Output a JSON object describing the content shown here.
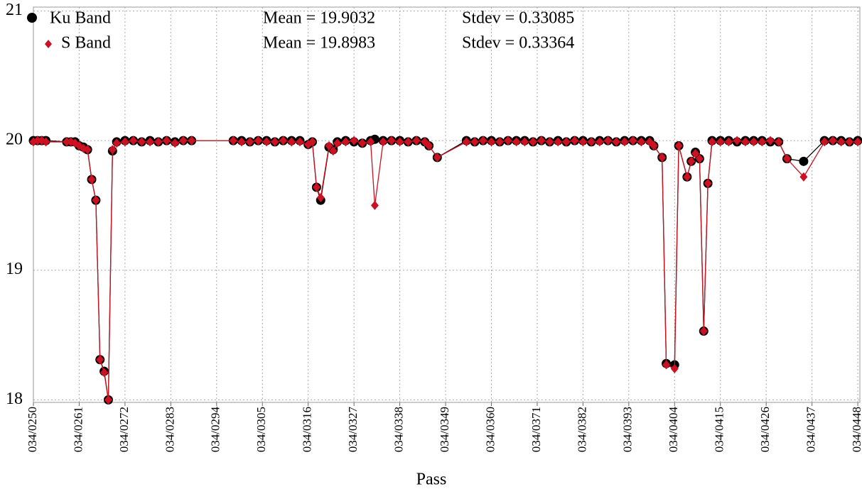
{
  "chart_data": {
    "type": "line",
    "x_label": "Pass",
    "x": [
      250,
      251,
      252,
      253,
      258,
      259,
      260,
      261,
      262,
      263,
      264,
      265,
      266,
      267,
      268,
      269,
      270,
      272,
      274,
      276,
      278,
      280,
      282,
      284,
      286,
      288,
      298,
      300,
      302,
      304,
      306,
      308,
      310,
      312,
      314,
      316,
      317,
      318,
      319,
      321,
      322,
      323,
      325,
      327,
      329,
      331,
      332,
      334,
      336,
      338,
      340,
      342,
      344,
      345,
      347,
      354,
      356,
      358,
      360,
      362,
      364,
      366,
      368,
      370,
      372,
      374,
      376,
      378,
      380,
      382,
      384,
      386,
      388,
      390,
      392,
      394,
      396,
      398,
      399,
      401,
      402,
      404,
      405,
      407,
      408,
      409,
      410,
      411,
      412,
      413,
      415,
      417,
      419,
      421,
      423,
      425,
      427,
      429,
      431,
      435,
      440,
      442,
      444,
      446,
      448
    ],
    "series": [
      {
        "name": "Ku Band",
        "color": "#000000",
        "marker": "circle",
        "values": [
          20.0,
          20.0,
          20.0,
          20.0,
          19.99,
          19.99,
          19.99,
          19.96,
          19.95,
          19.93,
          19.7,
          19.54,
          18.31,
          18.22,
          18.0,
          19.92,
          19.99,
          20.0,
          20.0,
          19.99,
          20.0,
          19.99,
          20.0,
          19.99,
          20.0,
          20.0,
          20.0,
          20.0,
          19.99,
          20.0,
          20.0,
          19.99,
          20.0,
          20.0,
          20.0,
          19.97,
          19.99,
          19.64,
          19.54,
          19.95,
          19.93,
          19.99,
          20.0,
          19.99,
          19.98,
          20.0,
          20.01,
          20.0,
          20.0,
          20.0,
          19.99,
          20.0,
          19.99,
          19.96,
          19.87,
          20.0,
          19.99,
          20.0,
          20.0,
          19.99,
          20.0,
          20.0,
          20.0,
          19.99,
          20.0,
          19.99,
          20.0,
          19.99,
          20.0,
          20.0,
          19.99,
          20.0,
          20.0,
          19.99,
          20.0,
          20.0,
          20.0,
          20.0,
          19.96,
          19.87,
          18.28,
          18.27,
          19.96,
          19.72,
          19.84,
          19.91,
          19.86,
          18.53,
          19.67,
          20.0,
          20.0,
          20.0,
          19.99,
          20.0,
          20.0,
          20.0,
          19.99,
          19.99,
          19.86,
          19.84,
          20.0,
          20.0,
          20.0,
          19.99,
          20.0
        ]
      },
      {
        "name": "S Band",
        "color": "#cc1122",
        "marker": "diamond",
        "values": [
          19.99,
          20.0,
          20.0,
          19.99,
          19.99,
          19.99,
          19.98,
          19.96,
          19.94,
          19.93,
          19.7,
          19.54,
          18.31,
          18.21,
          18.0,
          19.93,
          19.98,
          19.99,
          20.0,
          19.99,
          19.99,
          19.99,
          20.0,
          19.98,
          20.0,
          20.0,
          20.0,
          19.99,
          19.99,
          20.0,
          19.99,
          19.99,
          20.0,
          19.99,
          19.99,
          19.97,
          19.99,
          19.64,
          19.56,
          19.96,
          19.92,
          19.98,
          19.99,
          20.0,
          19.98,
          19.99,
          19.5,
          19.99,
          20.0,
          19.99,
          19.99,
          20.0,
          19.99,
          19.96,
          19.87,
          19.99,
          19.99,
          20.0,
          19.99,
          19.99,
          20.0,
          19.99,
          19.99,
          19.99,
          20.0,
          19.99,
          19.99,
          19.99,
          20.0,
          19.99,
          19.99,
          19.99,
          20.0,
          19.99,
          19.99,
          20.0,
          19.99,
          19.99,
          19.96,
          19.87,
          18.27,
          18.24,
          19.96,
          19.72,
          19.84,
          19.9,
          19.86,
          18.53,
          19.67,
          19.99,
          19.99,
          19.99,
          20.0,
          19.99,
          19.99,
          19.99,
          20.0,
          19.99,
          19.86,
          19.72,
          19.99,
          20.0,
          19.99,
          19.99,
          19.99
        ]
      }
    ],
    "annotations": [
      "Mean = 19.9032",
      "Stdev = 0.33085",
      "Mean = 19.8983",
      "Stdev = 0.33364"
    ],
    "xlim": [
      250,
      448.5
    ],
    "xticks": [
      {
        "value": 250,
        "label": "034/0250"
      },
      {
        "value": 261,
        "label": "034/0261"
      },
      {
        "value": 272,
        "label": "034/0272"
      },
      {
        "value": 283,
        "label": "034/0283"
      },
      {
        "value": 294,
        "label": "034/0294"
      },
      {
        "value": 305,
        "label": "034/0305"
      },
      {
        "value": 316,
        "label": "034/0316"
      },
      {
        "value": 327,
        "label": "034/0327"
      },
      {
        "value": 338,
        "label": "034/0338"
      },
      {
        "value": 349,
        "label": "034/0349"
      },
      {
        "value": 360,
        "label": "034/0360"
      },
      {
        "value": 371,
        "label": "034/0371"
      },
      {
        "value": 382,
        "label": "034/0382"
      },
      {
        "value": 393,
        "label": "034/0393"
      },
      {
        "value": 404,
        "label": "034/0404"
      },
      {
        "value": 415,
        "label": "034/0415"
      },
      {
        "value": 426,
        "label": "034/0426"
      },
      {
        "value": 437,
        "label": "034/0437"
      },
      {
        "value": 448,
        "label": "034/0448"
      }
    ],
    "ylim": [
      17.98,
      21.03
    ],
    "yticks": [
      18,
      19,
      20,
      21
    ],
    "grid": true
  }
}
